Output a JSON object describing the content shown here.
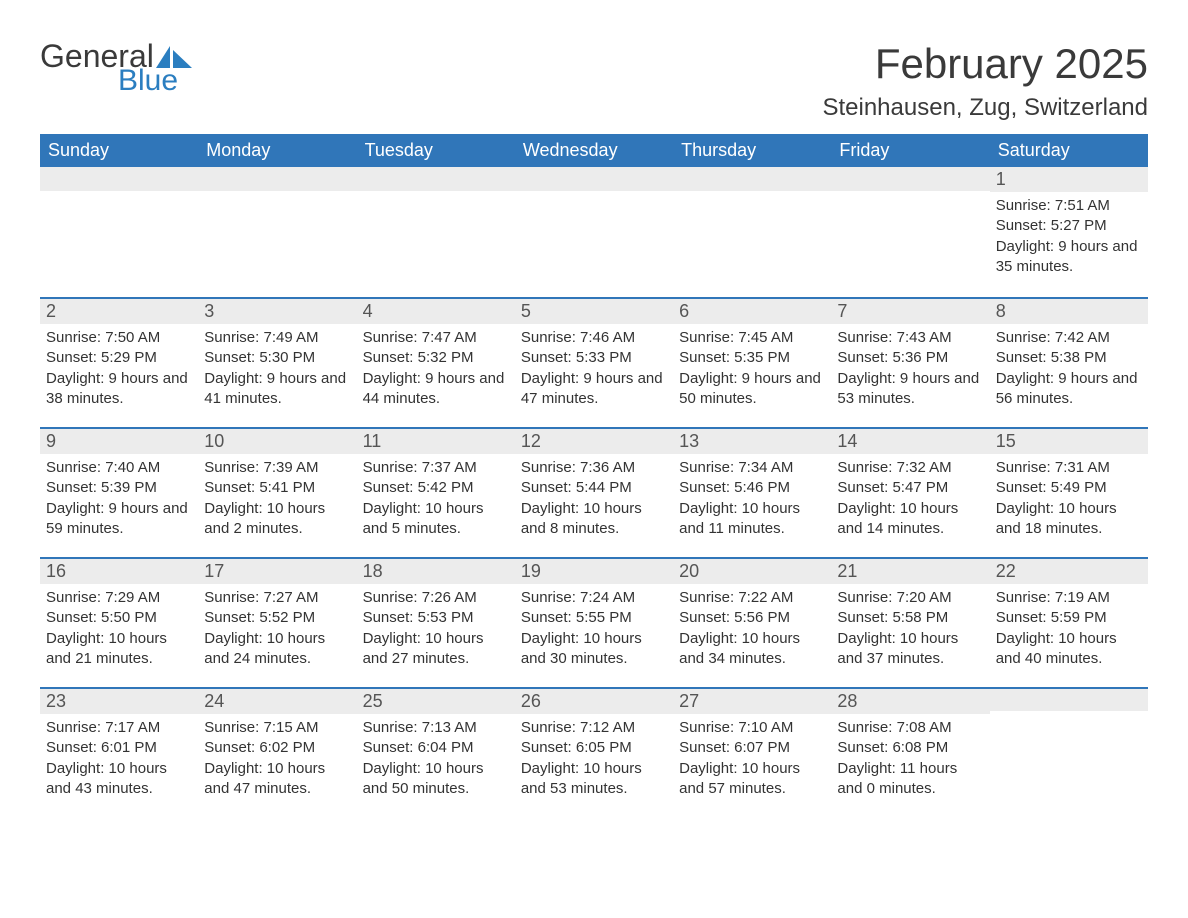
{
  "logo": {
    "text_general": "General",
    "text_blue": "Blue",
    "sail_color": "#2b7ec0"
  },
  "title": "February 2025",
  "subtitle": "Steinhausen, Zug, Switzerland",
  "colors": {
    "header_bg": "#3076b9",
    "header_text": "#ffffff",
    "strip_bg": "#ececec",
    "strip_border": "#3076b9",
    "body_text": "#333333",
    "page_bg": "#ffffff",
    "logo_gray": "#3a3a3a",
    "logo_blue": "#2b7ec0"
  },
  "day_headers": [
    "Sunday",
    "Monday",
    "Tuesday",
    "Wednesday",
    "Thursday",
    "Friday",
    "Saturday"
  ],
  "labels": {
    "sunrise": "Sunrise:",
    "sunset": "Sunset:",
    "daylight": "Daylight:"
  },
  "weeks": [
    [
      null,
      null,
      null,
      null,
      null,
      null,
      {
        "n": "1",
        "sunrise": "7:51 AM",
        "sunset": "5:27 PM",
        "daylight": "9 hours and 35 minutes."
      }
    ],
    [
      {
        "n": "2",
        "sunrise": "7:50 AM",
        "sunset": "5:29 PM",
        "daylight": "9 hours and 38 minutes."
      },
      {
        "n": "3",
        "sunrise": "7:49 AM",
        "sunset": "5:30 PM",
        "daylight": "9 hours and 41 minutes."
      },
      {
        "n": "4",
        "sunrise": "7:47 AM",
        "sunset": "5:32 PM",
        "daylight": "9 hours and 44 minutes."
      },
      {
        "n": "5",
        "sunrise": "7:46 AM",
        "sunset": "5:33 PM",
        "daylight": "9 hours and 47 minutes."
      },
      {
        "n": "6",
        "sunrise": "7:45 AM",
        "sunset": "5:35 PM",
        "daylight": "9 hours and 50 minutes."
      },
      {
        "n": "7",
        "sunrise": "7:43 AM",
        "sunset": "5:36 PM",
        "daylight": "9 hours and 53 minutes."
      },
      {
        "n": "8",
        "sunrise": "7:42 AM",
        "sunset": "5:38 PM",
        "daylight": "9 hours and 56 minutes."
      }
    ],
    [
      {
        "n": "9",
        "sunrise": "7:40 AM",
        "sunset": "5:39 PM",
        "daylight": "9 hours and 59 minutes."
      },
      {
        "n": "10",
        "sunrise": "7:39 AM",
        "sunset": "5:41 PM",
        "daylight": "10 hours and 2 minutes."
      },
      {
        "n": "11",
        "sunrise": "7:37 AM",
        "sunset": "5:42 PM",
        "daylight": "10 hours and 5 minutes."
      },
      {
        "n": "12",
        "sunrise": "7:36 AM",
        "sunset": "5:44 PM",
        "daylight": "10 hours and 8 minutes."
      },
      {
        "n": "13",
        "sunrise": "7:34 AM",
        "sunset": "5:46 PM",
        "daylight": "10 hours and 11 minutes."
      },
      {
        "n": "14",
        "sunrise": "7:32 AM",
        "sunset": "5:47 PM",
        "daylight": "10 hours and 14 minutes."
      },
      {
        "n": "15",
        "sunrise": "7:31 AM",
        "sunset": "5:49 PM",
        "daylight": "10 hours and 18 minutes."
      }
    ],
    [
      {
        "n": "16",
        "sunrise": "7:29 AM",
        "sunset": "5:50 PM",
        "daylight": "10 hours and 21 minutes."
      },
      {
        "n": "17",
        "sunrise": "7:27 AM",
        "sunset": "5:52 PM",
        "daylight": "10 hours and 24 minutes."
      },
      {
        "n": "18",
        "sunrise": "7:26 AM",
        "sunset": "5:53 PM",
        "daylight": "10 hours and 27 minutes."
      },
      {
        "n": "19",
        "sunrise": "7:24 AM",
        "sunset": "5:55 PM",
        "daylight": "10 hours and 30 minutes."
      },
      {
        "n": "20",
        "sunrise": "7:22 AM",
        "sunset": "5:56 PM",
        "daylight": "10 hours and 34 minutes."
      },
      {
        "n": "21",
        "sunrise": "7:20 AM",
        "sunset": "5:58 PM",
        "daylight": "10 hours and 37 minutes."
      },
      {
        "n": "22",
        "sunrise": "7:19 AM",
        "sunset": "5:59 PM",
        "daylight": "10 hours and 40 minutes."
      }
    ],
    [
      {
        "n": "23",
        "sunrise": "7:17 AM",
        "sunset": "6:01 PM",
        "daylight": "10 hours and 43 minutes."
      },
      {
        "n": "24",
        "sunrise": "7:15 AM",
        "sunset": "6:02 PM",
        "daylight": "10 hours and 47 minutes."
      },
      {
        "n": "25",
        "sunrise": "7:13 AM",
        "sunset": "6:04 PM",
        "daylight": "10 hours and 50 minutes."
      },
      {
        "n": "26",
        "sunrise": "7:12 AM",
        "sunset": "6:05 PM",
        "daylight": "10 hours and 53 minutes."
      },
      {
        "n": "27",
        "sunrise": "7:10 AM",
        "sunset": "6:07 PM",
        "daylight": "10 hours and 57 minutes."
      },
      {
        "n": "28",
        "sunrise": "7:08 AM",
        "sunset": "6:08 PM",
        "daylight": "11 hours and 0 minutes."
      },
      null
    ]
  ]
}
